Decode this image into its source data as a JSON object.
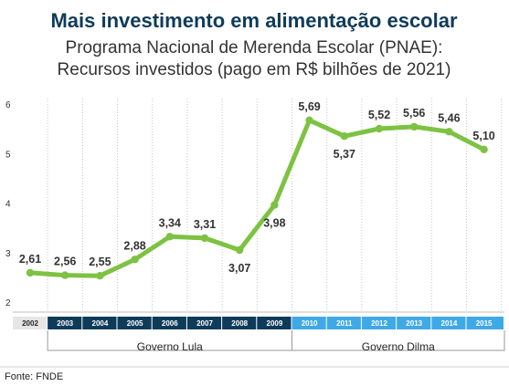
{
  "header": {
    "title": "Mais investimento em alimentação escolar",
    "subtitle_line1": "Programa Nacional de Merenda Escolar (PNAE):",
    "subtitle_line2": "Recursos investidos (pago em R$ bilhões de 2021)"
  },
  "chart_data": {
    "type": "line",
    "title": "Mais investimento em alimentação escolar",
    "subtitle": "Programa Nacional de Merenda Escolar (PNAE): Recursos investidos (pago em R$ bilhões de 2021)",
    "xlabel": "",
    "ylabel": "",
    "categories": [
      "2002",
      "2003",
      "2004",
      "2005",
      "2006",
      "2007",
      "2008",
      "2009",
      "2010",
      "2011",
      "2012",
      "2013",
      "2014",
      "2015"
    ],
    "series": [
      {
        "values": [
          2.61,
          2.56,
          2.55,
          2.88,
          3.34,
          3.31,
          3.07,
          3.98,
          5.69,
          5.37,
          5.52,
          5.56,
          5.46,
          5.1
        ],
        "labels": [
          "2,61",
          "2,56",
          "2,55",
          "2,88",
          "3,34",
          "3,31",
          "3,07",
          "3,98",
          "5,69",
          "5,37",
          "5,52",
          "5,56",
          "5,46",
          "5,10"
        ],
        "color": "#7dc242"
      }
    ],
    "ylim": [
      2,
      6
    ],
    "yticks": [
      "2",
      "3",
      "4",
      "5",
      "6"
    ],
    "grid": "vertical-dashed",
    "label_position": [
      "above",
      "above",
      "above",
      "above",
      "above",
      "above",
      "below",
      "below",
      "above",
      "below",
      "above",
      "above",
      "above",
      "above"
    ],
    "groups": [
      {
        "name": "Governo Lula",
        "years": [
          "2003",
          "2004",
          "2005",
          "2006",
          "2007",
          "2008",
          "2009"
        ],
        "color": "#0f3b5a"
      },
      {
        "name": "Governo Dilma",
        "years": [
          "2010",
          "2011",
          "2012",
          "2013",
          "2014",
          "2015"
        ],
        "color": "#3fa9e8"
      }
    ],
    "ungrouped_year_color": "#e6e6e6"
  },
  "footer": {
    "source": "Fonte: FNDE"
  }
}
